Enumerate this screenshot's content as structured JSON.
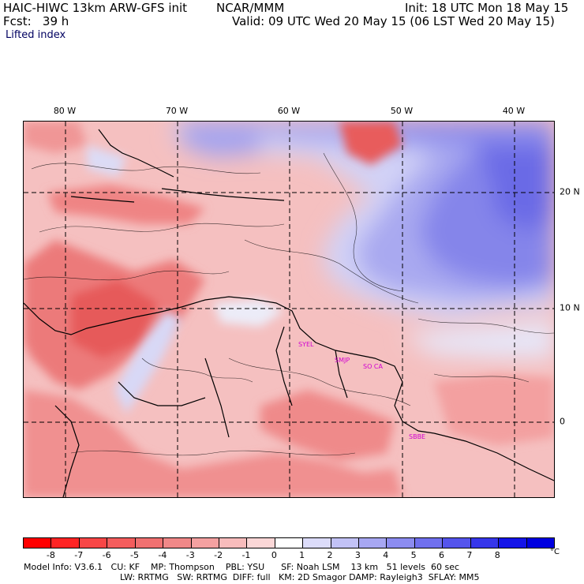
{
  "header": {
    "model_title": "HAIC-HIWC 13km ARW-GFS init",
    "org": "NCAR/MMM",
    "init_time": "Init: 18 UTC Mon 18 May 15",
    "forecast_hour": "Fcst:   39 h",
    "valid_time": "Valid: 09 UTC Wed 20 May 15 (06 LST Wed 20 May 15)",
    "field_name": "Lifted index"
  },
  "map": {
    "lon_labels": [
      "80 W",
      "70 W",
      "60 W",
      "50 W",
      "40 W"
    ],
    "lat_labels": [
      "20 N",
      "10 N",
      "0"
    ],
    "stations": [
      "SYEL",
      "SMJP",
      "SO CA",
      "SBBE"
    ]
  },
  "colorbar": {
    "ticks": [
      "-8",
      "-7",
      "-6",
      "-5",
      "-4",
      "-3",
      "-2",
      "-1",
      "0",
      "1",
      "2",
      "3",
      "4",
      "5",
      "6",
      "7",
      "8"
    ],
    "unit": "°C",
    "colors": [
      "#ff0000",
      "#ff2424",
      "#f84646",
      "#f45d5d",
      "#f07171",
      "#f08888",
      "#f4a1a1",
      "#f8bcbc",
      "#fbd7d7",
      "#ffffff",
      "#dcdcfa",
      "#c2c2f6",
      "#a7a7f2",
      "#8c8cf0",
      "#7070ee",
      "#5454ec",
      "#3636ea",
      "#1414e8",
      "#0000e0"
    ]
  },
  "footer": {
    "line1": "Model Info: V3.6.1   CU: KF    MP: Thompson    PBL: YSU      SF: Noah LSM    13 km   51 levels  60 sec",
    "line2": "LW: RRTMG   SW: RRTMG  DIFF: full   KM: 2D Smagor DAMP: Rayleigh3  SFLAY: MM5"
  }
}
